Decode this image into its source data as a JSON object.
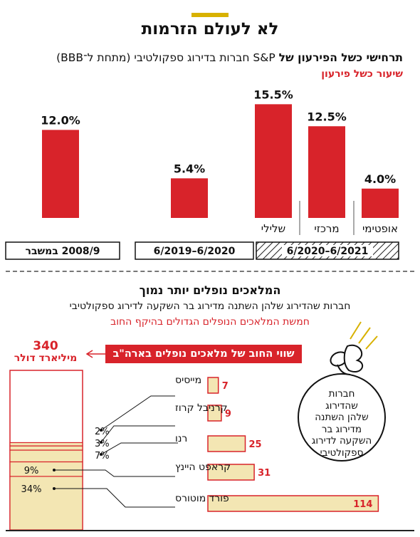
{
  "main_title": "לא לעולם הזרמות",
  "chart_data": [
    {
      "type": "bar",
      "title_bold": "תרחישי כשל הפירעון של",
      "title_rest": "S&P חברות בדירוג ספקולטיבי (מתחת ל־BBB)",
      "subtitle": "שיעור כשל פירעון",
      "periods": [
        "2008/9 במשבר",
        "6/2020–6/2019",
        "6/2021–6/2020"
      ],
      "categories": [
        "",
        "",
        "שלילי",
        "מרכזי",
        "אופטימי"
      ],
      "values": [
        12.0,
        5.4,
        15.5,
        12.5,
        4.0
      ],
      "value_labels": [
        "12.0%",
        "5.4%",
        "15.5%",
        "12.5%",
        "4.0%"
      ],
      "period_index": [
        0,
        1,
        2,
        2,
        2
      ],
      "unit": "%",
      "bar_color": "#d8232a"
    },
    {
      "type": "bar",
      "title": "המלאכים נופלים יותר נמוך",
      "subtitle": "חברות שהדירוג שלהן השתנה מדירוג בר השקעה לדירוג ספקולטיבי",
      "highlight": "חמשת המלאכים הנופלים הגדולים בהיקף החוב",
      "callout": "שווי החוב של מלאכים נופלים בארה\"ב",
      "total_value": "340",
      "total_unit": "מיליארד דולר",
      "categories": [
        "מייסיס",
        "קרניבל קרוז",
        "רנו",
        "קראפט היינץ",
        "פורד מוטורס"
      ],
      "values": [
        7,
        9,
        25,
        31,
        114
      ],
      "share_labels": [
        "2%",
        "3%",
        "7%",
        "9%",
        "34%"
      ],
      "bar_fill": "#f3e6b3",
      "bar_stroke": "#d8232a",
      "bubble_lines": [
        "חברות",
        "שהדירוג",
        "שלהן השתנה",
        "מדירוג בר",
        "השקעה לדירוג",
        "ספקולטיבי"
      ]
    }
  ]
}
